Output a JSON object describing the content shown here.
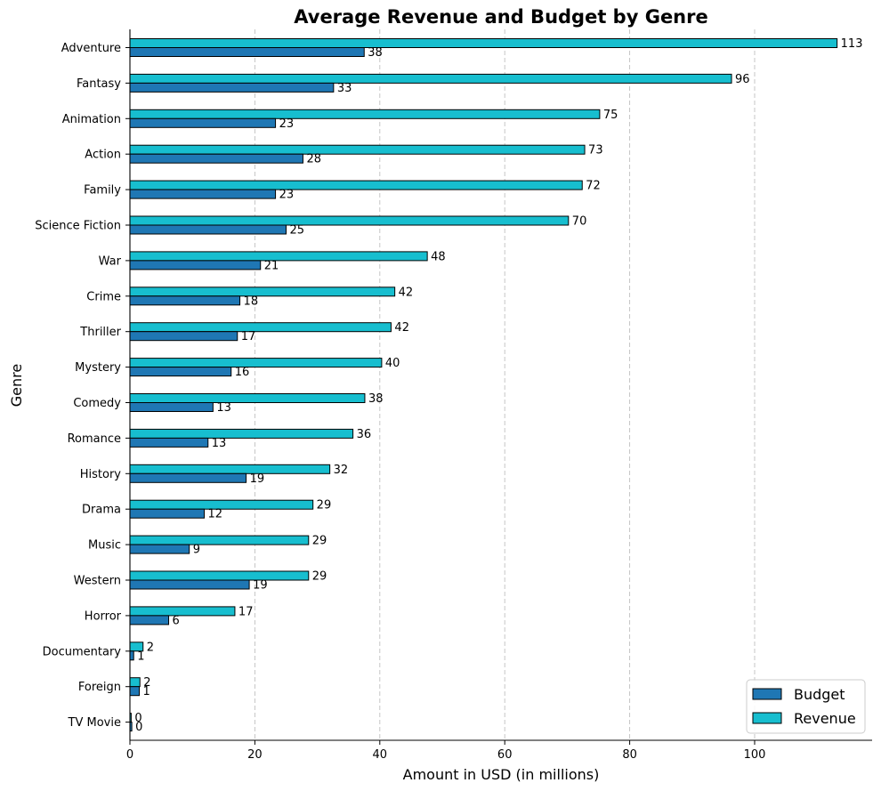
{
  "chart_data": {
    "type": "bar",
    "orientation": "horizontal",
    "title": "Average Revenue and Budget by Genre",
    "xlabel": "Amount in USD (in millions)",
    "ylabel": "Genre",
    "xlim": [
      0,
      118
    ],
    "xticks": [
      0,
      20,
      40,
      60,
      80,
      100
    ],
    "grid": "vertical-dashed",
    "legend_position": "bottom-right",
    "categories": [
      "Adventure",
      "Fantasy",
      "Animation",
      "Action",
      "Family",
      "Science Fiction",
      "War",
      "Crime",
      "Thriller",
      "Mystery",
      "Comedy",
      "Romance",
      "History",
      "Drama",
      "Music",
      "Western",
      "Horror",
      "Documentary",
      "Foreign",
      "TV Movie"
    ],
    "series": [
      {
        "name": "Budget",
        "color": "#1f77b4",
        "values": [
          37.5,
          32.6,
          23.3,
          27.7,
          23.3,
          25.0,
          20.9,
          17.6,
          17.2,
          16.2,
          13.3,
          12.5,
          18.6,
          11.9,
          9.5,
          19.1,
          6.2,
          0.6,
          1.5,
          0.3
        ],
        "labels": [
          "38",
          "33",
          "23",
          "28",
          "23",
          "25",
          "21",
          "18",
          "17",
          "16",
          "13",
          "13",
          "19",
          "12",
          "9",
          "19",
          "6",
          "1",
          "1",
          "0"
        ]
      },
      {
        "name": "Revenue",
        "color": "#17becf",
        "values": [
          113.2,
          96.3,
          75.2,
          72.8,
          72.4,
          70.2,
          47.6,
          42.4,
          41.8,
          40.3,
          37.6,
          35.7,
          32.0,
          29.3,
          28.6,
          28.6,
          16.8,
          2.1,
          1.6,
          0.2
        ],
        "labels": [
          "113",
          "96",
          "75",
          "73",
          "72",
          "70",
          "48",
          "42",
          "42",
          "40",
          "38",
          "36",
          "32",
          "29",
          "29",
          "29",
          "17",
          "2",
          "2",
          "0"
        ]
      }
    ]
  }
}
